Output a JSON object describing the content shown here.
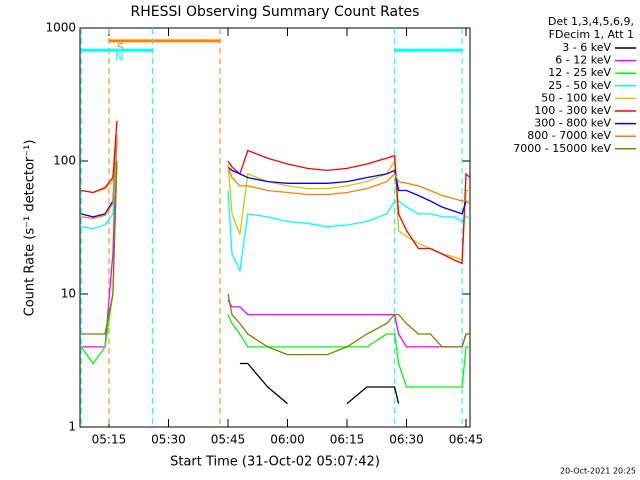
{
  "chart_data": {
    "type": "line",
    "title": "RHESSI Observing Summary Count Rates",
    "xlabel": "Start Time (31-Oct-02 05:07:42)",
    "ylabel": "Count Rate (s⁻¹ detector⁻¹)",
    "legend_title": [
      "Det 1,3,4,5,6,9,",
      "FDecim 1, Att 1"
    ],
    "footer": "20-Oct-2021 20:25",
    "log_y": true,
    "legend": "right",
    "xlim": [
      "05:07:42",
      "06:46"
    ],
    "xticks": [
      "05:15",
      "05:30",
      "05:45",
      "06:00",
      "06:15",
      "06:30",
      "06:45"
    ],
    "ylim": [
      1,
      1000
    ],
    "yticks": [
      1,
      10,
      100,
      1000
    ],
    "intervals": [
      {
        "label": "S",
        "start": "05:15",
        "end": "05:43",
        "level": 800,
        "color": "#ff8000"
      },
      {
        "label": "N",
        "start": "05:08",
        "end": "05:26",
        "level": 680,
        "color": "#00ffff"
      },
      {
        "start": "06:27",
        "end": "06:44",
        "level": 680,
        "color": "#00ffff"
      }
    ],
    "x": [
      "05:08",
      "05:11",
      "05:14",
      "05:16",
      "05:17",
      "05:30",
      "05:45",
      "05:46",
      "05:48",
      "05:50",
      "05:55",
      "06:00",
      "06:05",
      "06:10",
      "06:15",
      "06:20",
      "06:25",
      "06:27",
      "06:28",
      "06:30",
      "06:33",
      "06:36",
      "06:39",
      "06:42",
      "06:44",
      "06:45",
      "06:46"
    ],
    "series": [
      {
        "name": "3 - 6 keV",
        "color": "#000000",
        "values": [
          null,
          null,
          null,
          null,
          null,
          null,
          null,
          null,
          3,
          3,
          2,
          1.5,
          null,
          null,
          1.5,
          2,
          2,
          2,
          1.5,
          null,
          null,
          null,
          null,
          null,
          null,
          null,
          null
        ]
      },
      {
        "name": "6 - 12 keV",
        "color": "#ff00ff",
        "values": [
          4,
          4,
          4,
          20,
          150,
          null,
          9,
          8,
          8,
          7,
          7,
          7,
          7,
          7,
          7,
          7,
          7,
          7,
          5,
          4,
          4,
          4,
          4,
          4,
          4,
          5,
          5
        ]
      },
      {
        "name": "12 - 25 keV",
        "color": "#00ff00",
        "values": [
          4,
          3,
          4,
          10,
          100,
          null,
          7,
          6,
          5,
          4,
          4,
          4,
          4,
          4,
          4,
          4,
          5,
          5,
          3,
          2,
          2,
          2,
          2,
          2,
          2,
          4,
          4
        ]
      },
      {
        "name": "25 - 50 keV",
        "color": "#00ffff",
        "values": [
          32,
          31,
          33,
          40,
          120,
          null,
          60,
          20,
          15,
          40,
          38,
          35,
          34,
          32,
          33,
          35,
          40,
          50,
          50,
          45,
          40,
          40,
          38,
          38,
          35,
          38,
          38
        ]
      },
      {
        "name": "50 - 100 keV",
        "color": "#cccc00",
        "values": [
          60,
          58,
          62,
          70,
          160,
          null,
          95,
          40,
          28,
          80,
          70,
          65,
          62,
          62,
          65,
          70,
          80,
          100,
          30,
          27,
          24,
          22,
          20,
          19,
          18,
          60,
          60
        ]
      },
      {
        "name": "100 - 300 keV",
        "color": "#ff0000",
        "values": [
          60,
          58,
          63,
          75,
          200,
          null,
          100,
          90,
          80,
          120,
          105,
          95,
          88,
          85,
          88,
          95,
          105,
          110,
          40,
          30,
          22,
          22,
          20,
          18,
          17,
          80,
          75
        ]
      },
      {
        "name": "300 - 800 keV",
        "color": "#0000ff",
        "values": [
          40,
          38,
          40,
          50,
          150,
          null,
          90,
          85,
          80,
          75,
          70,
          68,
          68,
          68,
          70,
          75,
          80,
          85,
          60,
          60,
          55,
          50,
          45,
          42,
          40,
          50,
          48
        ]
      },
      {
        "name": "800 - 7000 keV",
        "color": "#ff8000",
        "values": [
          38,
          37,
          39,
          48,
          150,
          null,
          90,
          75,
          65,
          65,
          60,
          58,
          56,
          56,
          58,
          62,
          70,
          80,
          70,
          68,
          65,
          60,
          55,
          52,
          50,
          50,
          48
        ]
      },
      {
        "name": "7000 - 15000 keV",
        "color": "#808000",
        "values": [
          5,
          5,
          5,
          10,
          100,
          null,
          10,
          7,
          6,
          5,
          4,
          3.5,
          3.5,
          3.5,
          4,
          5,
          6,
          7,
          7,
          6,
          5,
          5,
          4,
          4,
          4,
          5,
          5
        ]
      }
    ]
  }
}
